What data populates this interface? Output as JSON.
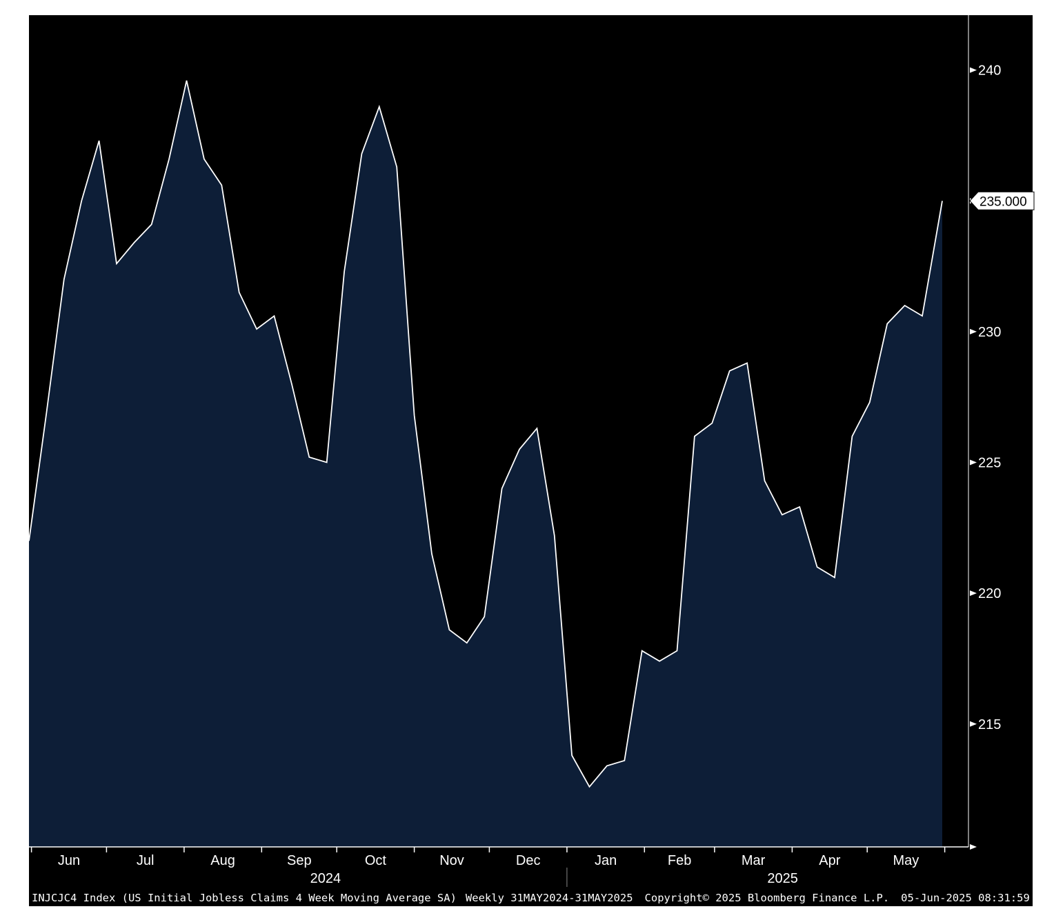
{
  "chart_data": {
    "type": "area",
    "title": "",
    "ticker": "INJCJC4 Index (US Initial Jobless Claims 4 Week Moving Average SA)",
    "frequency_range": "Weekly 31MAY2024-31MAY2025",
    "copyright": "Copyright© 2025 Bloomberg Finance L.P.",
    "timestamp": "05-Jun-2025 08:31:59",
    "last_value_label": "235.000",
    "last_value": 235.0,
    "ylim": [
      210.3,
      242.1
    ],
    "yticks": [
      {
        "value": 240,
        "label": "240"
      },
      {
        "value": 235,
        "label": ""
      },
      {
        "value": 230,
        "label": "230"
      },
      {
        "value": 225,
        "label": "225"
      },
      {
        "value": 220,
        "label": "220"
      },
      {
        "value": 215,
        "label": "215"
      }
    ],
    "x_months": [
      "Jun",
      "Jul",
      "Aug",
      "Sep",
      "Oct",
      "Nov",
      "Dec",
      "Jan",
      "Feb",
      "Mar",
      "Apr",
      "May"
    ],
    "x_years": [
      "2024",
      "2025"
    ],
    "series": [
      {
        "x": [
          "2024-05-31",
          "2024-06-07",
          "2024-06-14",
          "2024-06-21",
          "2024-06-28",
          "2024-07-05",
          "2024-07-12",
          "2024-07-19",
          "2024-07-26",
          "2024-08-02",
          "2024-08-09",
          "2024-08-16",
          "2024-08-23",
          "2024-08-30",
          "2024-09-06",
          "2024-09-13",
          "2024-09-20",
          "2024-09-27",
          "2024-10-04",
          "2024-10-11",
          "2024-10-18",
          "2024-10-25",
          "2024-11-01",
          "2024-11-08",
          "2024-11-15",
          "2024-11-22",
          "2024-11-29",
          "2024-12-06",
          "2024-12-13",
          "2024-12-20",
          "2024-12-27",
          "2025-01-03",
          "2025-01-10",
          "2025-01-17",
          "2025-01-24",
          "2025-01-31",
          "2025-02-07",
          "2025-02-14",
          "2025-02-21",
          "2025-02-28",
          "2025-03-07",
          "2025-03-14",
          "2025-03-21",
          "2025-03-28",
          "2025-04-04",
          "2025-04-11",
          "2025-04-18",
          "2025-04-25",
          "2025-05-02",
          "2025-05-09",
          "2025-05-16",
          "2025-05-23",
          "2025-05-31"
        ],
        "values": [
          222.0,
          226.9,
          232.0,
          235.0,
          237.3,
          232.6,
          233.4,
          234.1,
          236.6,
          239.6,
          236.6,
          235.6,
          231.5,
          230.1,
          230.6,
          228.0,
          225.2,
          225.0,
          232.3,
          236.8,
          238.6,
          236.3,
          226.8,
          221.5,
          218.6,
          218.1,
          219.1,
          224.0,
          225.5,
          226.3,
          222.2,
          213.8,
          212.6,
          213.4,
          213.6,
          217.8,
          217.4,
          217.8,
          226.0,
          226.5,
          228.5,
          228.8,
          224.3,
          223.0,
          223.3,
          221.0,
          220.6,
          226.0,
          227.3,
          230.3,
          231.0,
          230.6,
          235.0
        ]
      }
    ],
    "colors": {
      "background": "#000000",
      "area_fill": "#0d1e37",
      "line": "#ffffff",
      "axis": "#ffffff"
    }
  }
}
